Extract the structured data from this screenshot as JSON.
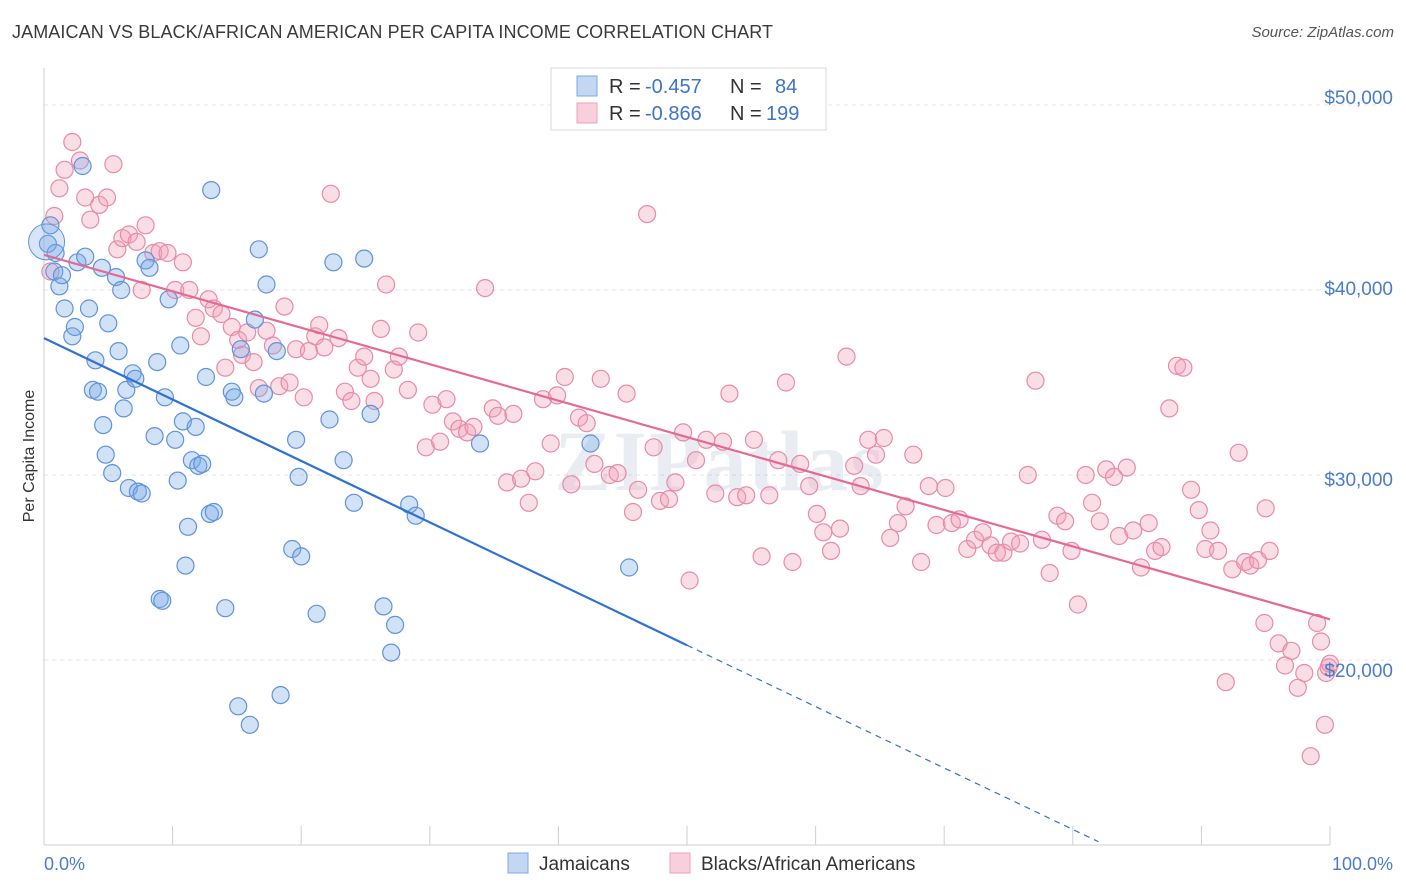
{
  "header": {
    "title": "JAMAICAN VS BLACK/AFRICAN AMERICAN PER CAPITA INCOME CORRELATION CHART",
    "source": "Source: ZipAtlas.com"
  },
  "colors": {
    "jamaican": "#7aa8e6",
    "black": "#f0a0b8",
    "jamaican_line": "#2f72d4",
    "black_line": "#e46a94",
    "tick": "#4a7cc9"
  },
  "legend": {
    "rows": [
      {
        "r_label": "R =",
        "r_value": "-0.457",
        "n_label": "N =",
        "n_value": "84"
      },
      {
        "r_label": "R =",
        "r_value": "-0.866",
        "n_label": "N =",
        "n_value": "199"
      }
    ]
  },
  "chart_data": {
    "type": "scatter",
    "title": "JAMAICAN VS BLACK/AFRICAN AMERICAN PER CAPITA INCOME CORRELATION CHART",
    "xlabel": "",
    "ylabel": "Per Capita Income",
    "xlim": [
      0,
      100
    ],
    "ylim": [
      10000,
      52000
    ],
    "x_tick_labels": [
      "0.0%",
      "100.0%"
    ],
    "y_ticks": [
      20000,
      30000,
      40000,
      50000
    ],
    "y_tick_labels": [
      "$20,000",
      "$30,000",
      "$40,000",
      "$50,000"
    ],
    "grid": true,
    "legend_position": "top-center",
    "watermark": "ZIPatlas",
    "series": [
      {
        "name": "Jamaicans",
        "color": "#7aa8e6",
        "trend": {
          "x0": 0,
          "y0": 37400,
          "x1": 50,
          "y1": 20800,
          "dashed_to_x": 82
        },
        "points": [
          [
            0.3,
            42500
          ],
          [
            0.5,
            43500
          ],
          [
            0.8,
            41000
          ],
          [
            0.9,
            42000
          ],
          [
            1.2,
            40200
          ],
          [
            1.4,
            40800
          ],
          [
            1.6,
            39000
          ],
          [
            2.2,
            37500
          ],
          [
            2.4,
            38000
          ],
          [
            2.6,
            41500
          ],
          [
            3.0,
            46700
          ],
          [
            3.2,
            41800
          ],
          [
            3.5,
            39000
          ],
          [
            3.8,
            34600
          ],
          [
            4.0,
            36200
          ],
          [
            4.2,
            34500
          ],
          [
            4.5,
            41200
          ],
          [
            4.6,
            32700
          ],
          [
            4.8,
            31100
          ],
          [
            5.0,
            38200
          ],
          [
            5.3,
            30100
          ],
          [
            5.6,
            40700
          ],
          [
            5.8,
            36700
          ],
          [
            6.0,
            40000
          ],
          [
            6.2,
            33600
          ],
          [
            6.4,
            34600
          ],
          [
            6.6,
            29300
          ],
          [
            6.9,
            35500
          ],
          [
            7.1,
            35200
          ],
          [
            7.3,
            29100
          ],
          [
            7.6,
            29000
          ],
          [
            7.9,
            41600
          ],
          [
            8.2,
            41200
          ],
          [
            8.6,
            32100
          ],
          [
            8.8,
            36100
          ],
          [
            9.0,
            23300
          ],
          [
            9.2,
            23200
          ],
          [
            9.4,
            34200
          ],
          [
            9.7,
            39500
          ],
          [
            10.2,
            31900
          ],
          [
            10.4,
            29700
          ],
          [
            10.6,
            37000
          ],
          [
            10.8,
            32900
          ],
          [
            11.0,
            25100
          ],
          [
            11.2,
            27200
          ],
          [
            11.5,
            30800
          ],
          [
            11.8,
            32600
          ],
          [
            12.0,
            30500
          ],
          [
            12.3,
            30600
          ],
          [
            12.6,
            35300
          ],
          [
            12.9,
            27900
          ],
          [
            13.2,
            28000
          ],
          [
            13.0,
            45400
          ],
          [
            14.1,
            22800
          ],
          [
            14.6,
            34500
          ],
          [
            14.8,
            34200
          ],
          [
            15.1,
            17500
          ],
          [
            15.3,
            36800
          ],
          [
            16.0,
            16500
          ],
          [
            16.4,
            38400
          ],
          [
            16.7,
            42200
          ],
          [
            17.1,
            34400
          ],
          [
            17.3,
            40300
          ],
          [
            18.1,
            36700
          ],
          [
            18.4,
            18100
          ],
          [
            19.3,
            26000
          ],
          [
            19.6,
            31900
          ],
          [
            19.8,
            29900
          ],
          [
            20.0,
            25600
          ],
          [
            21.2,
            22500
          ],
          [
            22.2,
            33000
          ],
          [
            22.5,
            41500
          ],
          [
            23.3,
            30800
          ],
          [
            24.1,
            28500
          ],
          [
            24.9,
            41700
          ],
          [
            25.4,
            33300
          ],
          [
            26.4,
            22900
          ],
          [
            27.0,
            20400
          ],
          [
            27.3,
            21900
          ],
          [
            28.4,
            28400
          ],
          [
            28.9,
            27800
          ],
          [
            33.9,
            31700
          ],
          [
            42.5,
            31700
          ],
          [
            45.5,
            25000
          ]
        ]
      },
      {
        "name": "Blacks/African Americans",
        "color": "#f0a0b8",
        "trend": {
          "x0": 0,
          "y0": 41900,
          "x1": 100,
          "y1": 22200
        },
        "points": [
          [
            0.5,
            41000
          ],
          [
            0.8,
            44000
          ],
          [
            1.2,
            45500
          ],
          [
            1.6,
            46500
          ],
          [
            2.2,
            48000
          ],
          [
            2.8,
            47000
          ],
          [
            3.2,
            45000
          ],
          [
            3.6,
            43800
          ],
          [
            4.3,
            44600
          ],
          [
            4.9,
            45000
          ],
          [
            5.4,
            46800
          ],
          [
            5.7,
            42200
          ],
          [
            6.1,
            42800
          ],
          [
            6.6,
            43000
          ],
          [
            7.2,
            42600
          ],
          [
            7.6,
            40000
          ],
          [
            7.9,
            43500
          ],
          [
            8.5,
            42000
          ],
          [
            9.0,
            42100
          ],
          [
            9.6,
            42000
          ],
          [
            10.2,
            40000
          ],
          [
            10.8,
            41500
          ],
          [
            11.3,
            40000
          ],
          [
            11.8,
            38500
          ],
          [
            12.2,
            37500
          ],
          [
            12.8,
            39500
          ],
          [
            13.2,
            39000
          ],
          [
            13.8,
            38700
          ],
          [
            14.1,
            35800
          ],
          [
            14.6,
            38000
          ],
          [
            15.1,
            37300
          ],
          [
            15.4,
            36500
          ],
          [
            15.8,
            37700
          ],
          [
            16.3,
            36100
          ],
          [
            16.7,
            34700
          ],
          [
            17.3,
            37800
          ],
          [
            17.8,
            37000
          ],
          [
            18.3,
            34800
          ],
          [
            18.7,
            39100
          ],
          [
            19.1,
            35000
          ],
          [
            19.6,
            36800
          ],
          [
            20.2,
            34200
          ],
          [
            20.6,
            36700
          ],
          [
            21.1,
            37500
          ],
          [
            21.4,
            38100
          ],
          [
            21.8,
            36900
          ],
          [
            22.3,
            45200
          ],
          [
            22.9,
            37400
          ],
          [
            23.4,
            34500
          ],
          [
            23.9,
            34000
          ],
          [
            24.4,
            35800
          ],
          [
            24.9,
            36400
          ],
          [
            25.4,
            35200
          ],
          [
            25.7,
            34000
          ],
          [
            26.2,
            37900
          ],
          [
            26.6,
            40300
          ],
          [
            27.2,
            35700
          ],
          [
            27.6,
            36400
          ],
          [
            28.3,
            34600
          ],
          [
            29.1,
            37700
          ],
          [
            29.7,
            31500
          ],
          [
            30.2,
            33800
          ],
          [
            30.8,
            31800
          ],
          [
            31.3,
            34100
          ],
          [
            31.8,
            32900
          ],
          [
            32.3,
            32500
          ],
          [
            32.9,
            32300
          ],
          [
            33.4,
            32600
          ],
          [
            34.3,
            40100
          ],
          [
            34.9,
            33600
          ],
          [
            35.3,
            33200
          ],
          [
            36.0,
            29600
          ],
          [
            36.5,
            33300
          ],
          [
            37.1,
            29800
          ],
          [
            37.7,
            28500
          ],
          [
            38.2,
            30200
          ],
          [
            38.8,
            34100
          ],
          [
            39.4,
            31700
          ],
          [
            39.9,
            34300
          ],
          [
            40.5,
            35300
          ],
          [
            41.0,
            29500
          ],
          [
            41.6,
            33100
          ],
          [
            42.2,
            32800
          ],
          [
            42.8,
            30600
          ],
          [
            43.3,
            35200
          ],
          [
            44.0,
            30000
          ],
          [
            44.6,
            30100
          ],
          [
            45.3,
            34400
          ],
          [
            45.8,
            28000
          ],
          [
            46.2,
            29200
          ],
          [
            46.9,
            44100
          ],
          [
            47.4,
            31500
          ],
          [
            47.9,
            28600
          ],
          [
            48.6,
            28700
          ],
          [
            49.1,
            29600
          ],
          [
            49.7,
            32300
          ],
          [
            50.2,
            24300
          ],
          [
            50.7,
            30800
          ],
          [
            51.5,
            31900
          ],
          [
            52.2,
            29000
          ],
          [
            52.8,
            31800
          ],
          [
            53.3,
            34400
          ],
          [
            53.9,
            28800
          ],
          [
            54.6,
            28900
          ],
          [
            55.2,
            31900
          ],
          [
            55.8,
            25600
          ],
          [
            56.4,
            28900
          ],
          [
            57.1,
            30800
          ],
          [
            57.7,
            35000
          ],
          [
            58.2,
            25300
          ],
          [
            58.8,
            30600
          ],
          [
            59.5,
            29400
          ],
          [
            60.1,
            27900
          ],
          [
            60.6,
            26900
          ],
          [
            61.2,
            25900
          ],
          [
            61.9,
            27100
          ],
          [
            62.4,
            36400
          ],
          [
            63.0,
            30500
          ],
          [
            63.5,
            29400
          ],
          [
            64.1,
            31900
          ],
          [
            64.7,
            31100
          ],
          [
            65.3,
            32000
          ],
          [
            65.8,
            26600
          ],
          [
            66.4,
            27400
          ],
          [
            67.0,
            28300
          ],
          [
            67.6,
            31100
          ],
          [
            68.2,
            25300
          ],
          [
            68.8,
            29400
          ],
          [
            69.4,
            27300
          ],
          [
            70.1,
            29300
          ],
          [
            70.6,
            27400
          ],
          [
            71.2,
            27600
          ],
          [
            71.8,
            26000
          ],
          [
            72.4,
            26500
          ],
          [
            73.0,
            26900
          ],
          [
            73.6,
            26200
          ],
          [
            74.1,
            25800
          ],
          [
            74.6,
            25800
          ],
          [
            75.2,
            26400
          ],
          [
            75.9,
            26300
          ],
          [
            76.5,
            30000
          ],
          [
            77.1,
            35100
          ],
          [
            77.6,
            26500
          ],
          [
            78.2,
            24700
          ],
          [
            78.8,
            27800
          ],
          [
            79.4,
            27500
          ],
          [
            79.9,
            25900
          ],
          [
            80.4,
            23000
          ],
          [
            81.0,
            30000
          ],
          [
            81.5,
            28500
          ],
          [
            82.1,
            27500
          ],
          [
            82.6,
            30300
          ],
          [
            83.2,
            29900
          ],
          [
            83.6,
            26700
          ],
          [
            84.2,
            30400
          ],
          [
            84.7,
            27000
          ],
          [
            85.3,
            25000
          ],
          [
            85.9,
            27400
          ],
          [
            86.4,
            25900
          ],
          [
            86.9,
            26100
          ],
          [
            87.5,
            33600
          ],
          [
            88.1,
            35900
          ],
          [
            88.6,
            35800
          ],
          [
            89.2,
            29200
          ],
          [
            89.8,
            28100
          ],
          [
            90.3,
            26000
          ],
          [
            90.7,
            27000
          ],
          [
            91.3,
            25900
          ],
          [
            91.9,
            18800
          ],
          [
            92.4,
            24900
          ],
          [
            92.9,
            31200
          ],
          [
            93.4,
            25300
          ],
          [
            93.8,
            25100
          ],
          [
            94.4,
            25400
          ],
          [
            94.9,
            22000
          ],
          [
            95.3,
            25900
          ],
          [
            96.0,
            20900
          ],
          [
            96.5,
            19700
          ],
          [
            97.0,
            20500
          ],
          [
            97.5,
            18500
          ],
          [
            98.0,
            19300
          ],
          [
            98.5,
            14800
          ],
          [
            99.0,
            22000
          ],
          [
            99.3,
            21000
          ],
          [
            99.6,
            16500
          ],
          [
            99.7,
            19300
          ],
          [
            99.9,
            19600
          ],
          [
            100.0,
            19800
          ],
          [
            95.0,
            28200
          ]
        ]
      }
    ]
  },
  "axis": {
    "ylabel": "Per Capita Income",
    "x_left": "0.0%",
    "x_right": "100.0%",
    "y_ticks": [
      "$20,000",
      "$30,000",
      "$40,000",
      "$50,000"
    ]
  },
  "bottom_legend": {
    "items": [
      "Jamaicans",
      "Blacks/African Americans"
    ]
  },
  "watermark": "ZIPatlas"
}
